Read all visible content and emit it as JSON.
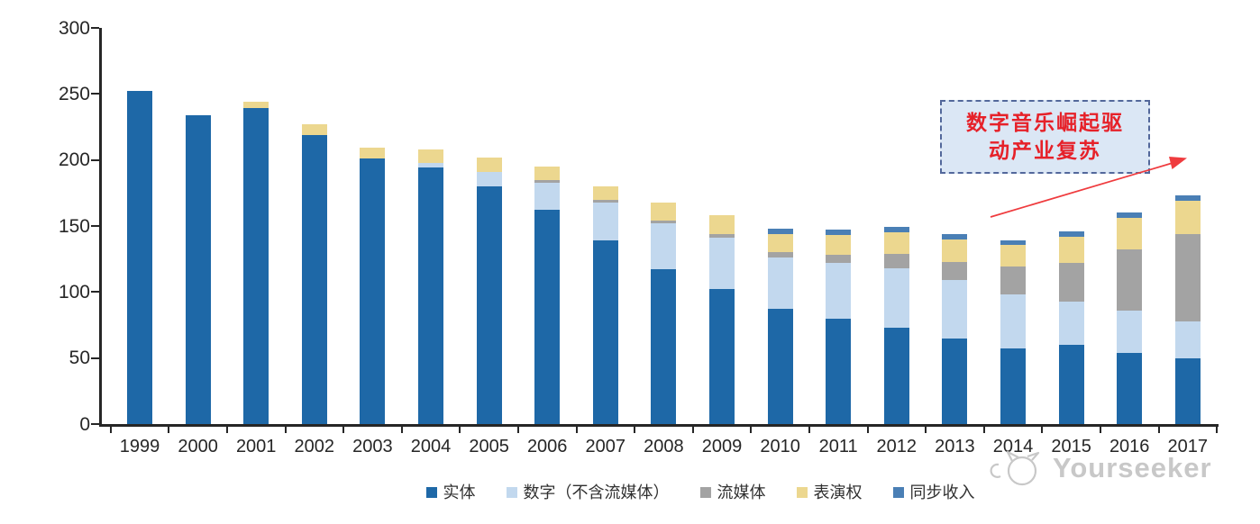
{
  "watermark": {
    "text": "Yourseeker"
  },
  "annotation": {
    "line1": "数字音乐崛起驱",
    "line2": "动产业复苏"
  },
  "colors": {
    "physical": "#1e68a7",
    "digital": "#c2d8ee",
    "streaming": "#a3a3a3",
    "performance": "#ecd78f",
    "sync": "#4a7fb5",
    "axis": "#262626",
    "callout_fill": "#dbe7f5",
    "callout_border": "#53689b",
    "annotation_red": "#e62129",
    "watermark_gray": "#c6c6c6"
  },
  "chart_data": {
    "type": "bar",
    "stacked": true,
    "title": "",
    "xlabel": "",
    "ylabel": "",
    "ylim": [
      0,
      300
    ],
    "yticks": [
      0,
      50,
      100,
      150,
      200,
      250,
      300
    ],
    "grid": false,
    "legend_position": "bottom",
    "categories": [
      "1999",
      "2000",
      "2001",
      "2002",
      "2003",
      "2004",
      "2005",
      "2006",
      "2007",
      "2008",
      "2009",
      "2010",
      "2011",
      "2012",
      "2013",
      "2014",
      "2015",
      "2016",
      "2017"
    ],
    "series": [
      {
        "name": "实体",
        "color": "#1e68a7",
        "values": [
          252,
          234,
          239,
          219,
          201,
          194,
          180,
          162,
          139,
          117,
          102,
          87,
          80,
          73,
          65,
          57,
          60,
          54,
          50
        ]
      },
      {
        "name": "数字（不含流媒体）",
        "color": "#c2d8ee",
        "values": [
          0,
          0,
          0,
          0,
          0,
          4,
          11,
          21,
          29,
          35,
          39,
          39,
          42,
          45,
          44,
          41,
          33,
          32,
          28
        ]
      },
      {
        "name": "流媒体",
        "color": "#a3a3a3",
        "values": [
          0,
          0,
          0,
          0,
          0,
          0,
          0,
          2,
          2,
          2,
          3,
          4,
          6,
          11,
          14,
          21,
          29,
          46,
          66
        ]
      },
      {
        "name": "表演权",
        "color": "#ecd78f",
        "values": [
          0,
          0,
          5,
          8,
          8,
          10,
          11,
          10,
          10,
          14,
          14,
          14,
          15,
          16,
          17,
          17,
          20,
          24,
          25
        ]
      },
      {
        "name": "同步收入",
        "color": "#4a7fb5",
        "values": [
          0,
          0,
          0,
          0,
          0,
          0,
          0,
          0,
          0,
          0,
          0,
          4,
          4,
          4,
          4,
          3,
          4,
          4,
          4
        ]
      }
    ],
    "totals": [
      252,
      234,
      244,
      227,
      209,
      208,
      202,
      195,
      180,
      168,
      158,
      148,
      147,
      149,
      144,
      139,
      146,
      160,
      173
    ]
  }
}
